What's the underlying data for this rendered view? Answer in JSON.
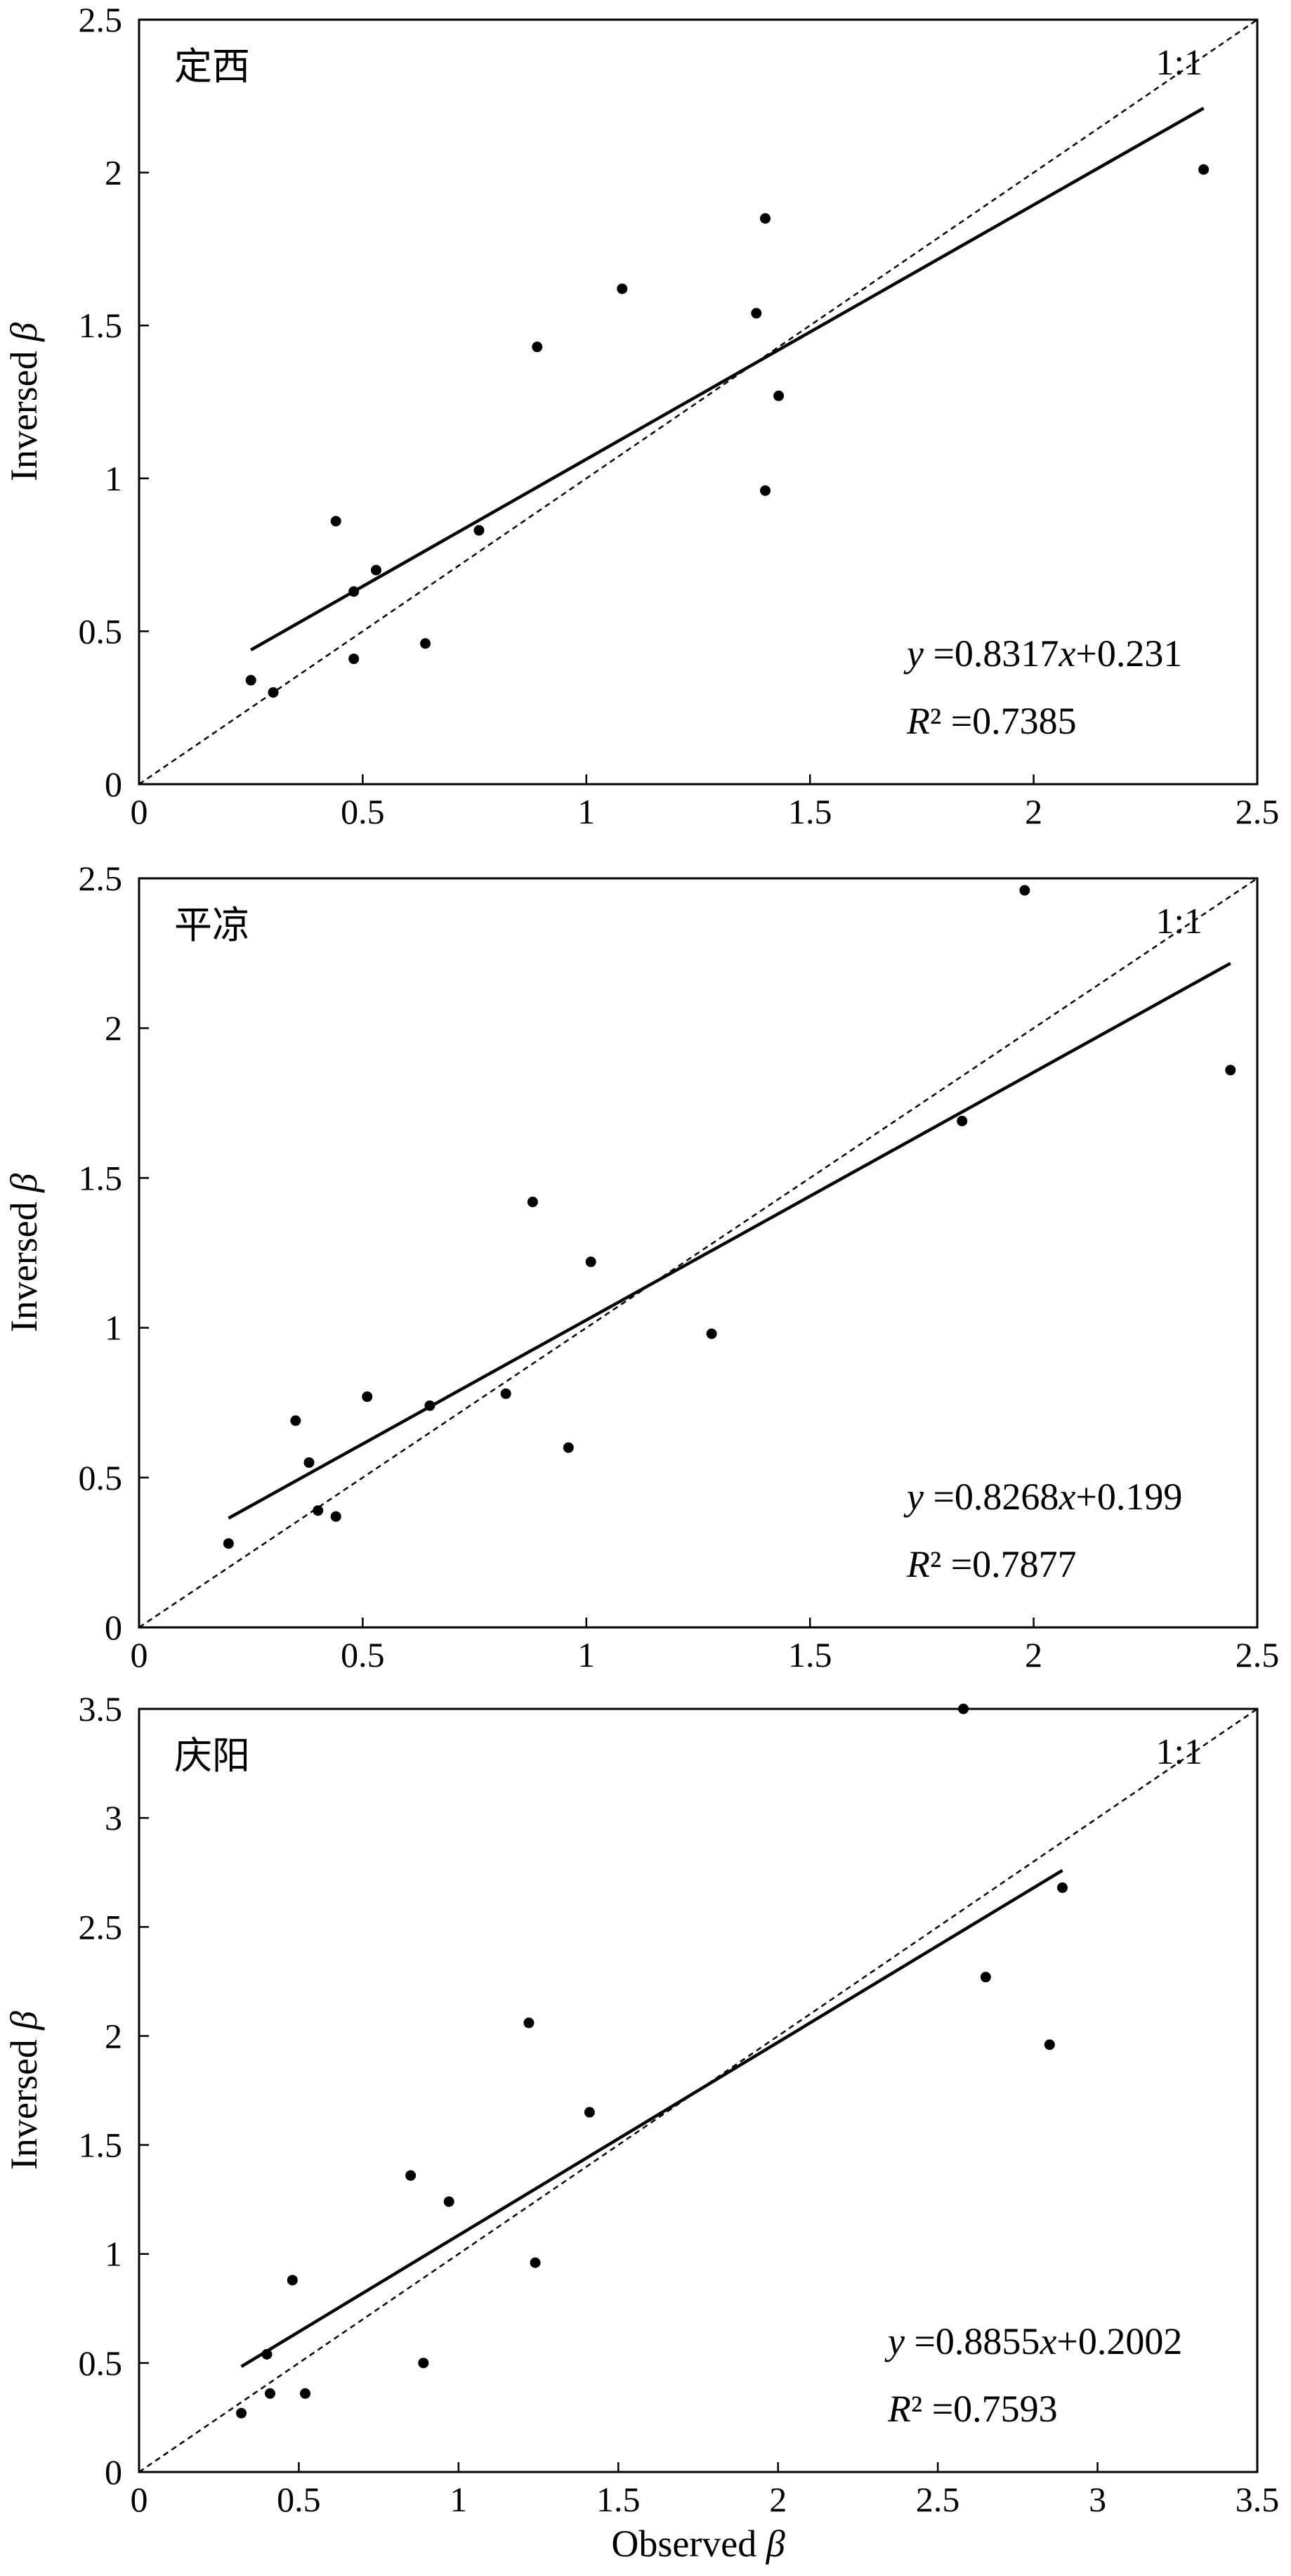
{
  "chart_data": [
    {
      "type": "scatter",
      "panel_label": "定西",
      "xlabel": "",
      "ylabel": "Inversed β",
      "xlim": [
        0,
        2.5
      ],
      "ylim": [
        0,
        2.5
      ],
      "xticks": [
        "0",
        "0.5",
        "1",
        "1.5",
        "2",
        "2.5"
      ],
      "yticks": [
        "0",
        "0.5",
        "1",
        "1.5",
        "2",
        "2.5"
      ],
      "identity_label": "1:1",
      "equation": "y =0.8317x+0.231",
      "r2": "R² =0.7385",
      "fit": {
        "slope": 0.8317,
        "intercept": 0.231,
        "x_range": [
          0.25,
          2.38
        ]
      },
      "points": [
        [
          0.25,
          0.34
        ],
        [
          0.3,
          0.3
        ],
        [
          0.44,
          0.86
        ],
        [
          0.48,
          0.63
        ],
        [
          0.48,
          0.41
        ],
        [
          0.53,
          0.7
        ],
        [
          0.64,
          0.46
        ],
        [
          0.76,
          0.83
        ],
        [
          0.89,
          1.43
        ],
        [
          1.08,
          1.62
        ],
        [
          1.38,
          1.54
        ],
        [
          1.4,
          1.85
        ],
        [
          1.4,
          0.96
        ],
        [
          1.43,
          1.27
        ],
        [
          2.38,
          2.01
        ]
      ]
    },
    {
      "type": "scatter",
      "panel_label": "平凉",
      "xlabel": "",
      "ylabel": "Inversed β",
      "xlim": [
        0,
        2.5
      ],
      "ylim": [
        0,
        2.5
      ],
      "xticks": [
        "0",
        "0.5",
        "1",
        "1.5",
        "2",
        "2.5"
      ],
      "yticks": [
        "0",
        "0.5",
        "1",
        "1.5",
        "2",
        "2.5"
      ],
      "identity_label": "1:1",
      "equation": "y =0.8268x+0.199",
      "r2": "R² =0.7877",
      "fit": {
        "slope": 0.8268,
        "intercept": 0.199,
        "x_range": [
          0.2,
          2.44
        ]
      },
      "points": [
        [
          0.2,
          0.28
        ],
        [
          0.35,
          0.69
        ],
        [
          0.38,
          0.55
        ],
        [
          0.4,
          0.39
        ],
        [
          0.44,
          0.37
        ],
        [
          0.51,
          0.77
        ],
        [
          0.65,
          0.74
        ],
        [
          0.82,
          0.78
        ],
        [
          0.88,
          1.42
        ],
        [
          0.96,
          0.6
        ],
        [
          1.01,
          1.22
        ],
        [
          1.28,
          0.98
        ],
        [
          1.84,
          1.69
        ],
        [
          1.98,
          2.46
        ],
        [
          2.44,
          1.86
        ]
      ]
    },
    {
      "type": "scatter",
      "panel_label": "庆阳",
      "xlabel": "Observed β",
      "ylabel": "Inversed β",
      "xlim": [
        0,
        3.5
      ],
      "ylim": [
        0,
        3.5
      ],
      "xticks": [
        "0",
        "0.5",
        "1",
        "1.5",
        "2",
        "2.5",
        "3",
        "3.5"
      ],
      "yticks": [
        "0",
        "0.5",
        "1",
        "1.5",
        "2",
        "2.5",
        "3",
        "3.5"
      ],
      "identity_label": "1:1",
      "equation": "y =0.8855x+0.2002",
      "r2": "R² =0.7593",
      "fit": {
        "slope": 0.8855,
        "intercept": 0.2002,
        "x_range": [
          0.32,
          2.89
        ]
      },
      "points": [
        [
          0.32,
          0.27
        ],
        [
          0.4,
          0.54
        ],
        [
          0.41,
          0.36
        ],
        [
          0.48,
          0.88
        ],
        [
          0.52,
          0.36
        ],
        [
          0.85,
          1.36
        ],
        [
          0.89,
          0.5
        ],
        [
          0.97,
          1.24
        ],
        [
          1.22,
          2.06
        ],
        [
          1.24,
          0.96
        ],
        [
          1.41,
          1.65
        ],
        [
          2.58,
          3.5
        ],
        [
          2.65,
          2.27
        ],
        [
          2.85,
          1.96
        ],
        [
          2.89,
          2.68
        ]
      ]
    }
  ]
}
